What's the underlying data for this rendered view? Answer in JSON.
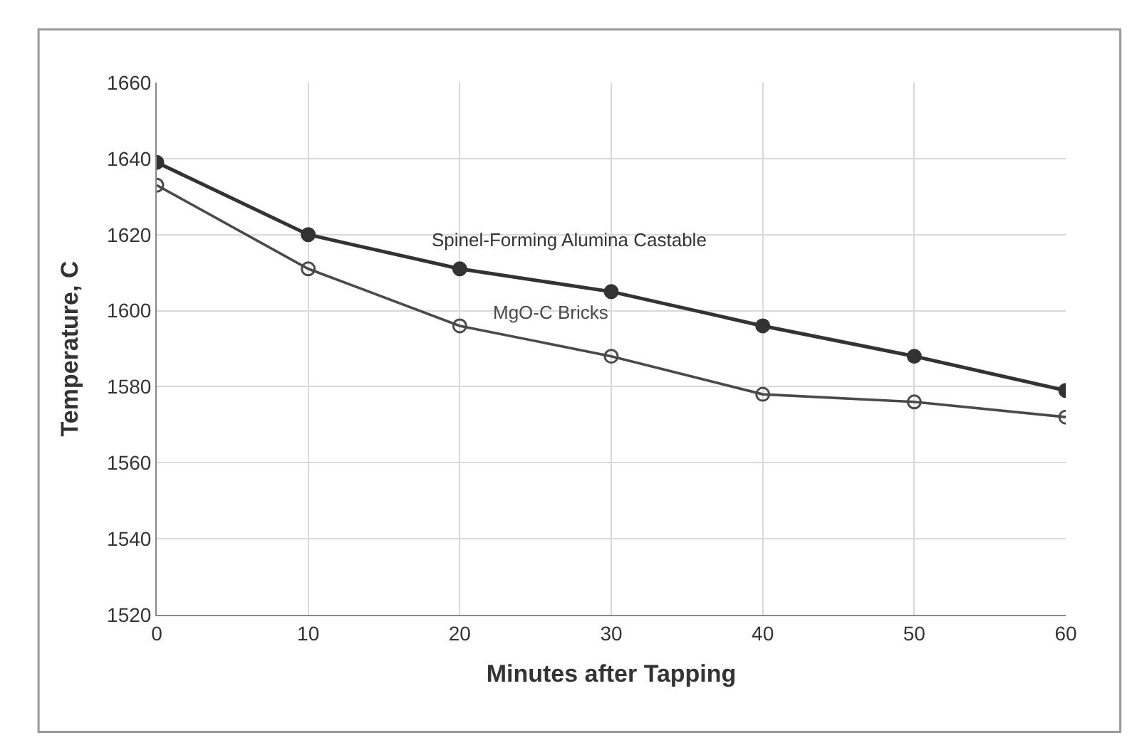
{
  "chart_data": {
    "type": "line",
    "xlabel": "Minutes after Tapping",
    "ylabel": "Temperature, C",
    "x": [
      0,
      10,
      20,
      30,
      40,
      50,
      60
    ],
    "series": [
      {
        "name": "Spinel-Forming Alumina Castable",
        "color": "#333333",
        "values": [
          1639,
          1620,
          1611,
          1605,
          1596,
          1588,
          1579
        ]
      },
      {
        "name": "MgO-C Bricks",
        "color": "#4a4a4a",
        "values": [
          1633,
          1611,
          1596,
          1588,
          1578,
          1576,
          1572
        ]
      }
    ],
    "xlim": [
      0,
      60
    ],
    "xticks": [
      0,
      10,
      20,
      30,
      40,
      50,
      60
    ],
    "ylim": [
      1520,
      1660
    ],
    "yticks": [
      1520,
      1540,
      1560,
      1580,
      1600,
      1620,
      1640,
      1660
    ],
    "grid": true,
    "legend": false,
    "marker": "circle",
    "line_style": "solid"
  }
}
